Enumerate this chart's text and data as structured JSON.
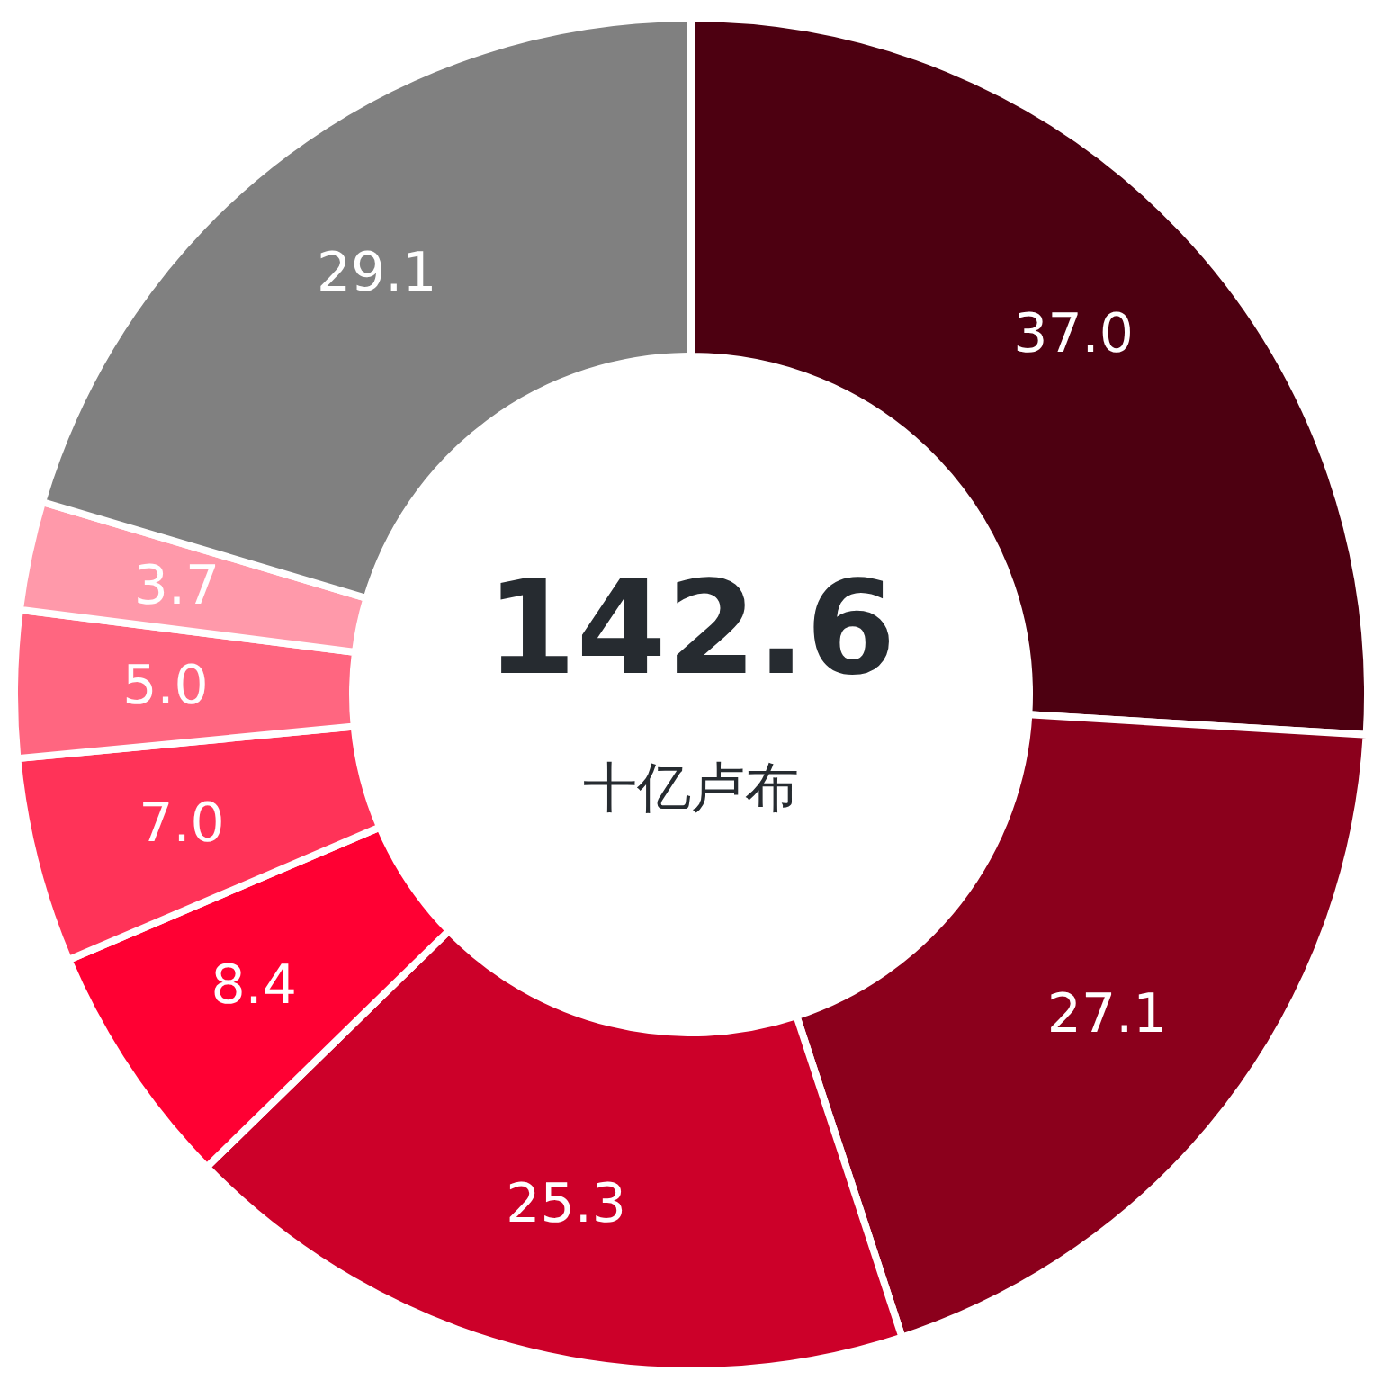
{
  "chart_data": {
    "type": "donut",
    "categories": [
      null,
      null,
      null,
      null,
      null,
      null,
      null,
      null
    ],
    "values": [
      37.0,
      27.1,
      25.3,
      8.4,
      7.0,
      5.0,
      3.7,
      29.1
    ],
    "value_labels": [
      "37.0",
      "27.1",
      "25.3",
      "8.4",
      "7.0",
      "5.0",
      "3.7",
      "29.1"
    ],
    "colors": [
      "#4d0011",
      "#8b001c",
      "#cc0029",
      "#ff0033",
      "#ff3358",
      "#ff6680",
      "#ff99aa",
      "#808080"
    ],
    "annotations": [
      "142.6",
      "十亿卢布"
    ]
  }
}
